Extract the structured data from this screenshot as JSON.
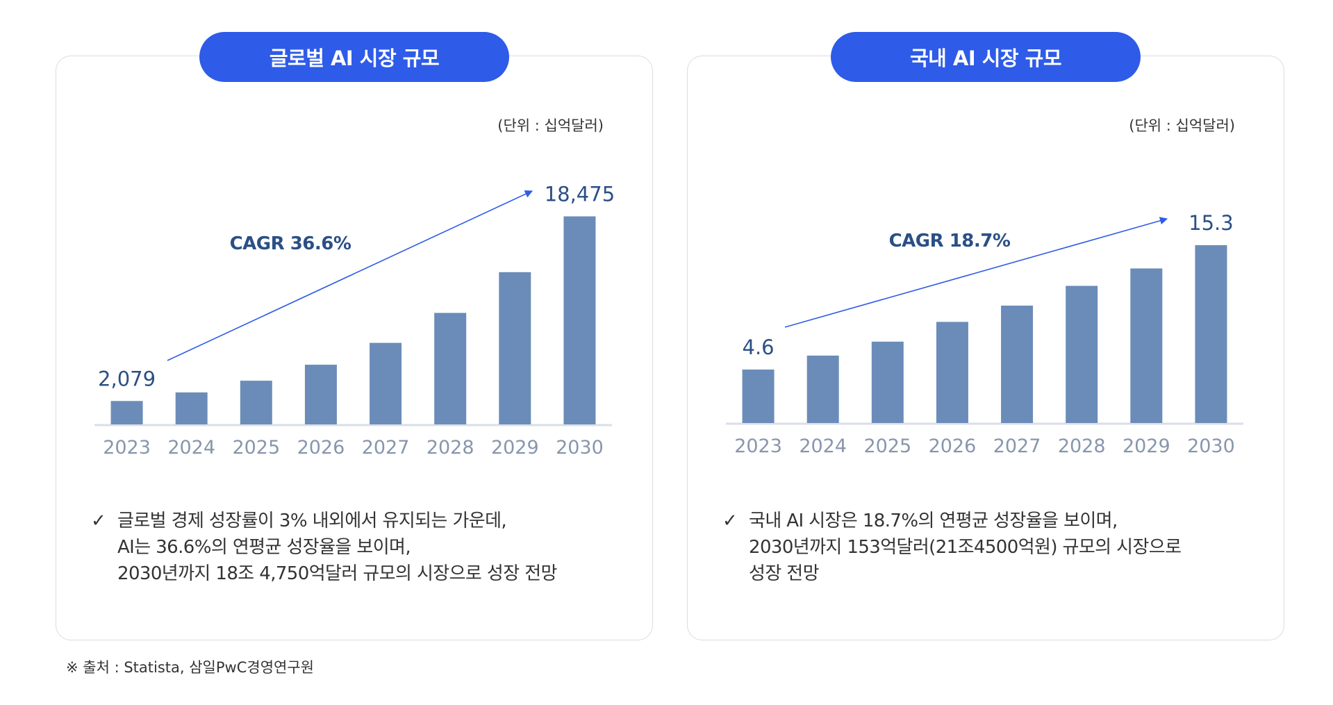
{
  "colors": {
    "bar": "#6b8cb8",
    "accent": "#2e5be8",
    "label": "#2b4f86",
    "tick": "#8796ad",
    "axis": "#d9dfe8"
  },
  "panels": [
    {
      "title": "글로벌 AI 시장 규모",
      "unit": "(단위 : 십억달러)",
      "bullets": [
        "글로벌 경제 성장률이 3% 내외에서 유지되는 가운데,",
        "AI는 36.6%의 연평균 성장율을 보이며,",
        "2030년까지 18조 4,750억달러 규모의 시장으로 성장 전망"
      ],
      "check": "✓"
    },
    {
      "title": "국내 AI 시장 규모",
      "unit": "(단위 : 십억달러)",
      "bullets": [
        "국내 AI 시장은 18.7%의 연평균 성장율을 보이며,",
        "2030년까지 153억달러(21조4500억원) 규모의 시장으로",
        "성장 전망"
      ],
      "check": "✓"
    }
  ],
  "source": "※  출처 : Statista, 삼일PwC경영연구원",
  "chart_data": [
    {
      "type": "bar",
      "title": "글로벌 AI 시장 규모",
      "unit": "(단위 : 십억달러)",
      "categories": [
        "2023",
        "2024",
        "2025",
        "2026",
        "2027",
        "2028",
        "2029",
        "2030"
      ],
      "values": [
        2079,
        2840,
        3880,
        5300,
        7240,
        9900,
        13520,
        18475
      ],
      "first_label": "2,079",
      "last_label": "18,475",
      "annotation": "CAGR 36.6%",
      "ylim": [
        0,
        19000
      ]
    },
    {
      "type": "bar",
      "title": "국내 AI 시장 규모",
      "unit": "(단위 : 십억달러)",
      "categories": [
        "2023",
        "2024",
        "2025",
        "2026",
        "2027",
        "2028",
        "2029",
        "2030"
      ],
      "values": [
        4.6,
        5.8,
        7.0,
        8.7,
        10.1,
        11.8,
        13.3,
        15.3
      ],
      "first_label": "4.6",
      "last_label": "15.3",
      "annotation": "CAGR 18.7%",
      "ylim": [
        0,
        15.3
      ]
    }
  ]
}
